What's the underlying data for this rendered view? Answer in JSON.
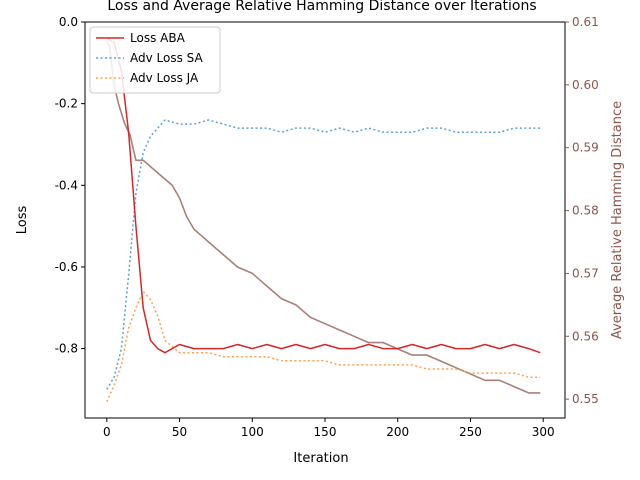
{
  "chart_data": {
    "type": "line",
    "title": "Loss and Average Relative Hamming Distance over Iterations",
    "xlabel": "Iteration",
    "ylabel": "Loss",
    "y2label": "Average Relative Hamming Distance",
    "xlim": [
      -15,
      315
    ],
    "ylim": [
      -0.97,
      0.0
    ],
    "y2lim": [
      0.547,
      0.61
    ],
    "xticks": [
      0,
      50,
      100,
      150,
      200,
      250,
      300
    ],
    "yticks": [
      0.0,
      -0.2,
      -0.4,
      -0.6,
      -0.8
    ],
    "y2ticks": [
      0.55,
      0.56,
      0.57,
      0.58,
      0.59,
      0.6,
      0.61
    ],
    "legend_position": "top-left",
    "colors": {
      "loss_aba": "#d62728",
      "adv_sa": "#5aa3cf",
      "adv_ja": "#ffa04c",
      "hamming": "#8c564b",
      "y2_text": "#8c564b"
    },
    "series": [
      {
        "name": "Loss ABA",
        "axis": "left",
        "style": "solid",
        "x": [
          0,
          5,
          10,
          15,
          20,
          25,
          30,
          35,
          40,
          50,
          60,
          70,
          80,
          90,
          100,
          110,
          120,
          130,
          140,
          150,
          160,
          170,
          180,
          190,
          200,
          210,
          220,
          230,
          240,
          250,
          260,
          270,
          280,
          290,
          298
        ],
        "y": [
          -0.04,
          -0.05,
          -0.12,
          -0.27,
          -0.5,
          -0.7,
          -0.78,
          -0.8,
          -0.81,
          -0.79,
          -0.8,
          -0.8,
          -0.8,
          -0.79,
          -0.8,
          -0.79,
          -0.8,
          -0.79,
          -0.8,
          -0.79,
          -0.8,
          -0.8,
          -0.79,
          -0.8,
          -0.8,
          -0.79,
          -0.8,
          -0.79,
          -0.8,
          -0.8,
          -0.79,
          -0.8,
          -0.79,
          -0.8,
          -0.81
        ]
      },
      {
        "name": "Adv Loss SA",
        "axis": "left",
        "style": "dotted",
        "x": [
          0,
          5,
          10,
          15,
          20,
          25,
          30,
          35,
          40,
          50,
          60,
          70,
          80,
          90,
          100,
          110,
          120,
          130,
          140,
          150,
          160,
          170,
          180,
          190,
          200,
          210,
          220,
          230,
          240,
          250,
          260,
          270,
          280,
          290,
          298
        ],
        "y": [
          -0.9,
          -0.87,
          -0.8,
          -0.62,
          -0.42,
          -0.32,
          -0.28,
          -0.26,
          -0.24,
          -0.25,
          -0.25,
          -0.24,
          -0.25,
          -0.26,
          -0.26,
          -0.26,
          -0.27,
          -0.26,
          -0.26,
          -0.27,
          -0.26,
          -0.27,
          -0.26,
          -0.27,
          -0.27,
          -0.27,
          -0.26,
          -0.26,
          -0.27,
          -0.27,
          -0.27,
          -0.27,
          -0.26,
          -0.26,
          -0.26
        ]
      },
      {
        "name": "Adv Loss JA",
        "axis": "left",
        "style": "dotted",
        "x": [
          0,
          5,
          10,
          15,
          20,
          25,
          30,
          35,
          40,
          50,
          60,
          70,
          80,
          90,
          100,
          110,
          120,
          130,
          140,
          150,
          160,
          170,
          180,
          190,
          200,
          210,
          220,
          230,
          240,
          250,
          260,
          270,
          280,
          290,
          298
        ],
        "y": [
          -0.93,
          -0.89,
          -0.84,
          -0.75,
          -0.7,
          -0.66,
          -0.68,
          -0.72,
          -0.78,
          -0.81,
          -0.81,
          -0.81,
          -0.82,
          -0.82,
          -0.82,
          -0.82,
          -0.83,
          -0.83,
          -0.83,
          -0.83,
          -0.84,
          -0.84,
          -0.84,
          -0.84,
          -0.84,
          -0.84,
          -0.85,
          -0.85,
          -0.85,
          -0.86,
          -0.86,
          -0.86,
          -0.86,
          -0.87,
          -0.87
        ]
      },
      {
        "name": "Average Relative Hamming Distance",
        "axis": "right",
        "style": "solid",
        "x": [
          0,
          2,
          5,
          8,
          12,
          16,
          20,
          25,
          30,
          35,
          40,
          45,
          50,
          55,
          60,
          65,
          70,
          80,
          90,
          100,
          110,
          120,
          130,
          140,
          150,
          160,
          170,
          180,
          190,
          200,
          210,
          220,
          230,
          240,
          250,
          260,
          270,
          280,
          290,
          298
        ],
        "y": [
          0.607,
          0.606,
          0.6,
          0.597,
          0.594,
          0.592,
          0.588,
          0.588,
          0.587,
          0.586,
          0.585,
          0.584,
          0.582,
          0.579,
          0.577,
          0.576,
          0.575,
          0.573,
          0.571,
          0.57,
          0.568,
          0.566,
          0.565,
          0.563,
          0.562,
          0.561,
          0.56,
          0.559,
          0.559,
          0.558,
          0.557,
          0.557,
          0.556,
          0.555,
          0.554,
          0.553,
          0.553,
          0.552,
          0.551,
          0.551
        ]
      }
    ]
  }
}
